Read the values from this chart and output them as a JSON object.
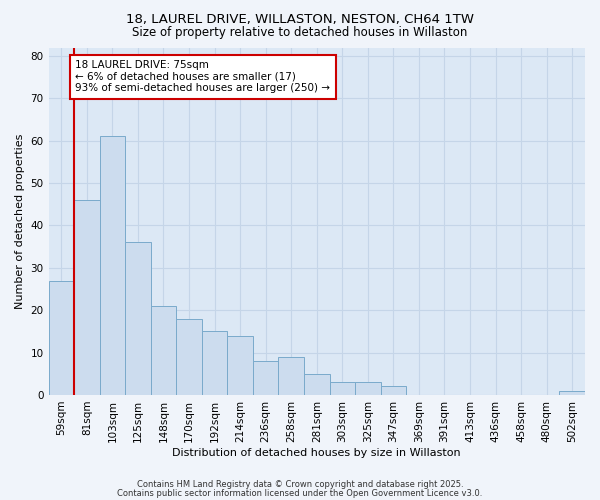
{
  "title1": "18, LAUREL DRIVE, WILLASTON, NESTON, CH64 1TW",
  "title2": "Size of property relative to detached houses in Willaston",
  "xlabel": "Distribution of detached houses by size in Willaston",
  "ylabel": "Number of detached properties",
  "categories": [
    "59sqm",
    "81sqm",
    "103sqm",
    "125sqm",
    "148sqm",
    "170sqm",
    "192sqm",
    "214sqm",
    "236sqm",
    "258sqm",
    "281sqm",
    "303sqm",
    "325sqm",
    "347sqm",
    "369sqm",
    "391sqm",
    "413sqm",
    "436sqm",
    "458sqm",
    "480sqm",
    "502sqm"
  ],
  "values": [
    27,
    46,
    61,
    36,
    21,
    18,
    15,
    14,
    8,
    9,
    5,
    3,
    3,
    2,
    0,
    0,
    0,
    0,
    0,
    0,
    1
  ],
  "bar_color": "#ccdcee",
  "bar_edge_color": "#7aaacb",
  "vline_x": 0.5,
  "vline_color": "#cc0000",
  "annotation_text": "18 LAUREL DRIVE: 75sqm\n← 6% of detached houses are smaller (17)\n93% of semi-detached houses are larger (250) →",
  "annotation_box_facecolor": "#ffffff",
  "annotation_box_edge": "#cc0000",
  "ylim": [
    0,
    82
  ],
  "yticks": [
    0,
    10,
    20,
    30,
    40,
    50,
    60,
    70,
    80
  ],
  "grid_color": "#c5d5e8",
  "plot_bg_color": "#dce8f5",
  "fig_bg_color": "#f0f4fa",
  "footer1": "Contains HM Land Registry data © Crown copyright and database right 2025.",
  "footer2": "Contains public sector information licensed under the Open Government Licence v3.0.",
  "title_fontsize": 9.5,
  "subtitle_fontsize": 8.5,
  "axis_label_fontsize": 8,
  "tick_fontsize": 7.5,
  "annotation_fontsize": 7.5,
  "footer_fontsize": 6
}
